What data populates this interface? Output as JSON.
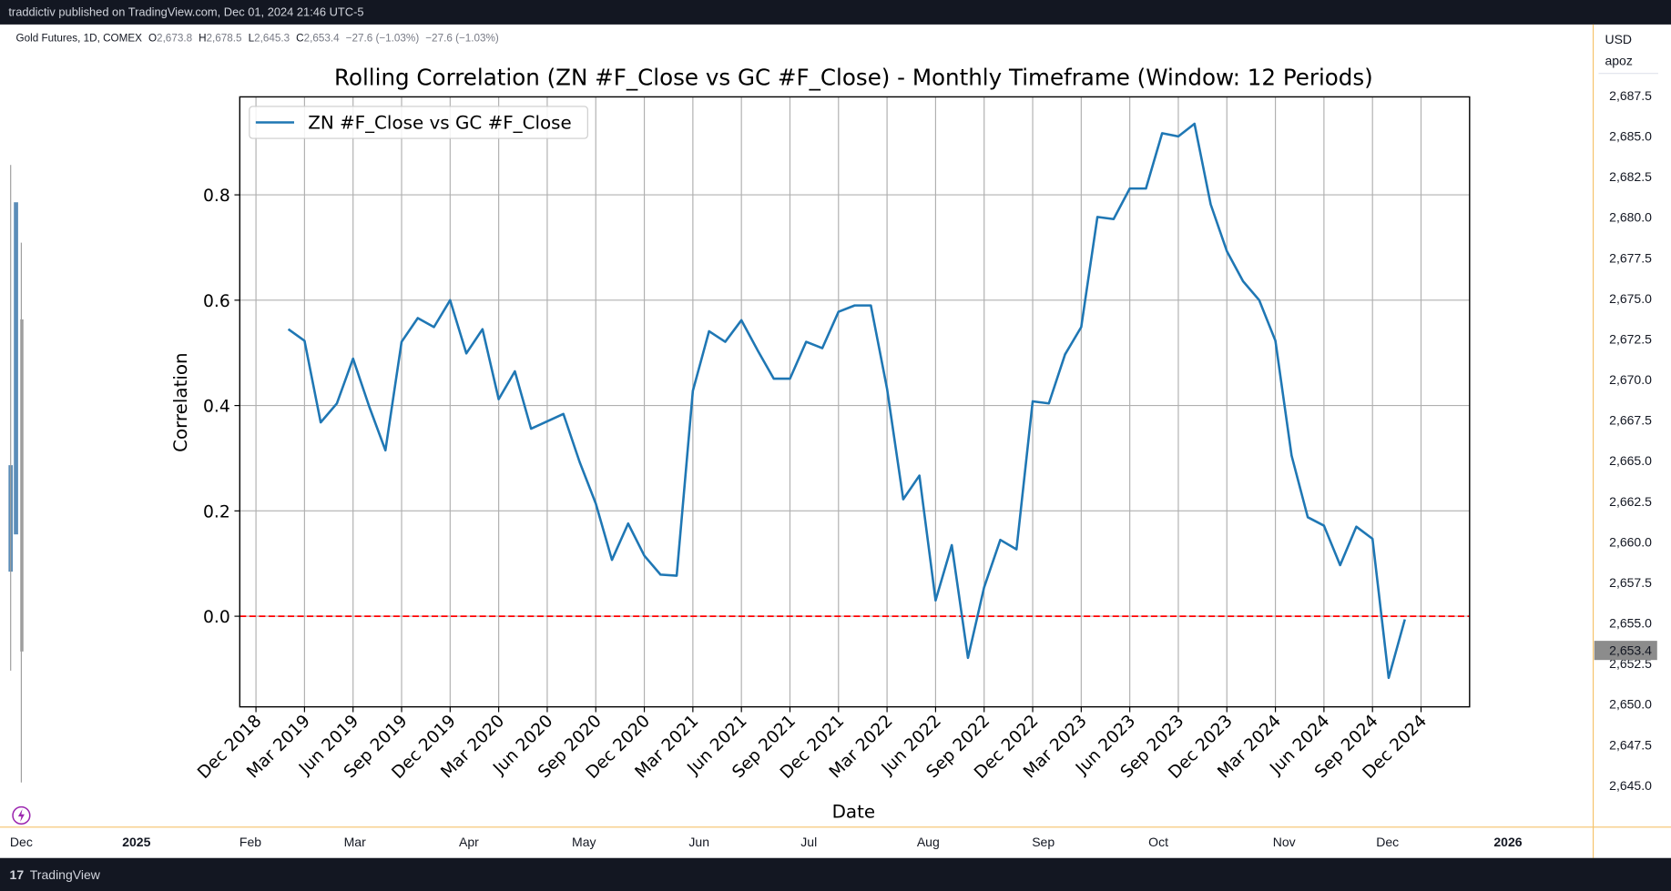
{
  "header": {
    "publisher": "traddictiv published on TradingView.com, Dec 01, 2024 21:46 UTC-5"
  },
  "symbol": {
    "name": "Gold Futures, 1D, COMEX",
    "quotes": [
      {
        "label": "O",
        "value": "2,673.8"
      },
      {
        "label": "H",
        "value": "2,678.5"
      },
      {
        "label": "L",
        "value": "2,645.3"
      },
      {
        "label": "C",
        "value": "2,653.4"
      }
    ],
    "change": "−27.6 (−1.03%)",
    "change2": "−27.6 (−1.03%)"
  },
  "price_axis": {
    "currency": "USD",
    "unit": "apoz",
    "labels": [
      "2,687.5",
      "2,685.0",
      "2,682.5",
      "2,680.0",
      "2,677.5",
      "2,675.0",
      "2,672.5",
      "2,670.0",
      "2,667.5",
      "2,665.0",
      "2,662.5",
      "2,660.0",
      "2,657.5",
      "2,655.0",
      "2,652.5",
      "2,650.0",
      "2,647.5",
      "2,645.0"
    ],
    "last_price": "2,653.4"
  },
  "time_axis": {
    "labels": [
      "Dec",
      "2025",
      "Feb",
      "Mar",
      "Apr",
      "May",
      "Jun",
      "Jul",
      "Aug",
      "Sep",
      "Oct",
      "Nov",
      "Dec",
      "2026"
    ]
  },
  "footer": {
    "brand": "TradingView"
  },
  "chart_data": {
    "type": "line",
    "title": "Rolling Correlation (ZN #F_Close vs GC #F_Close) - Monthly Timeframe (Window: 12 Periods)",
    "x_label": "Date",
    "y_label": "Correlation",
    "x": [
      "2019-02",
      "2019-03",
      "2019-04",
      "2019-05",
      "2019-06",
      "2019-07",
      "2019-08",
      "2019-09",
      "2019-10",
      "2019-11",
      "2019-12",
      "2020-01",
      "2020-02",
      "2020-03",
      "2020-04",
      "2020-05",
      "2020-06",
      "2020-07",
      "2020-08",
      "2020-09",
      "2020-10",
      "2020-11",
      "2020-12",
      "2021-01",
      "2021-02",
      "2021-03",
      "2021-04",
      "2021-05",
      "2021-06",
      "2021-07",
      "2021-08",
      "2021-09",
      "2021-10",
      "2021-11",
      "2021-12",
      "2022-01",
      "2022-02",
      "2022-03",
      "2022-04",
      "2022-05",
      "2022-06",
      "2022-07",
      "2022-08",
      "2022-09",
      "2022-10",
      "2022-11",
      "2022-12",
      "2023-01",
      "2023-02",
      "2023-03",
      "2023-04",
      "2023-05",
      "2023-06",
      "2023-07",
      "2023-08",
      "2023-09",
      "2023-10",
      "2023-11",
      "2023-12",
      "2024-01",
      "2024-02",
      "2024-03",
      "2024-04",
      "2024-05",
      "2024-06",
      "2024-07",
      "2024-08",
      "2024-09",
      "2024-10",
      "2024-11"
    ],
    "series": [
      {
        "name": "ZN #F_Close vs GC #F_Close",
        "color": "#1f77b4",
        "values": [
          0.545,
          0.523,
          0.368,
          0.404,
          0.489,
          0.398,
          0.315,
          0.521,
          0.566,
          0.549,
          0.6,
          0.499,
          0.545,
          0.412,
          0.465,
          0.356,
          0.37,
          0.384,
          0.293,
          0.214,
          0.107,
          0.176,
          0.115,
          0.079,
          0.077,
          0.428,
          0.541,
          0.521,
          0.562,
          0.505,
          0.451,
          0.451,
          0.521,
          0.509,
          0.578,
          0.59,
          0.59,
          0.432,
          0.222,
          0.267,
          0.03,
          0.135,
          -0.079,
          0.055,
          0.145,
          0.127,
          0.408,
          0.404,
          0.497,
          0.549,
          0.758,
          0.754,
          0.812,
          0.812,
          0.917,
          0.911,
          0.935,
          0.782,
          0.693,
          0.636,
          0.6,
          0.523,
          0.305,
          0.188,
          0.172,
          0.097,
          0.17,
          0.147,
          -0.117,
          -0.006
        ]
      }
    ],
    "xlim": [
      "2018-11",
      "2025-03"
    ],
    "xticks": [
      {
        "value": "2018-12",
        "label": "Dec 2018"
      },
      {
        "value": "2019-03",
        "label": "Mar 2019"
      },
      {
        "value": "2019-06",
        "label": "Jun 2019"
      },
      {
        "value": "2019-09",
        "label": "Sep 2019"
      },
      {
        "value": "2019-12",
        "label": "Dec 2019"
      },
      {
        "value": "2020-03",
        "label": "Mar 2020"
      },
      {
        "value": "2020-06",
        "label": "Jun 2020"
      },
      {
        "value": "2020-09",
        "label": "Sep 2020"
      },
      {
        "value": "2020-12",
        "label": "Dec 2020"
      },
      {
        "value": "2021-03",
        "label": "Mar 2021"
      },
      {
        "value": "2021-06",
        "label": "Jun 2021"
      },
      {
        "value": "2021-09",
        "label": "Sep 2021"
      },
      {
        "value": "2021-12",
        "label": "Dec 2021"
      },
      {
        "value": "2022-03",
        "label": "Mar 2022"
      },
      {
        "value": "2022-06",
        "label": "Jun 2022"
      },
      {
        "value": "2022-09",
        "label": "Sep 2022"
      },
      {
        "value": "2022-12",
        "label": "Dec 2022"
      },
      {
        "value": "2023-03",
        "label": "Mar 2023"
      },
      {
        "value": "2023-06",
        "label": "Jun 2023"
      },
      {
        "value": "2023-09",
        "label": "Sep 2023"
      },
      {
        "value": "2023-12",
        "label": "Dec 2023"
      },
      {
        "value": "2024-03",
        "label": "Mar 2024"
      },
      {
        "value": "2024-06",
        "label": "Jun 2024"
      },
      {
        "value": "2024-09",
        "label": "Sep 2024"
      },
      {
        "value": "2024-12",
        "label": "Dec 2024"
      }
    ],
    "ylim": [
      -0.172,
      0.986
    ],
    "yticks": [
      {
        "value": 0,
        "label": "0.0"
      },
      0.2,
      0.4,
      0.6,
      0.8
    ],
    "grid": true,
    "legend": "upper left",
    "reference_line": {
      "y": 0,
      "color": "#ff0000",
      "style": "dashed"
    }
  }
}
